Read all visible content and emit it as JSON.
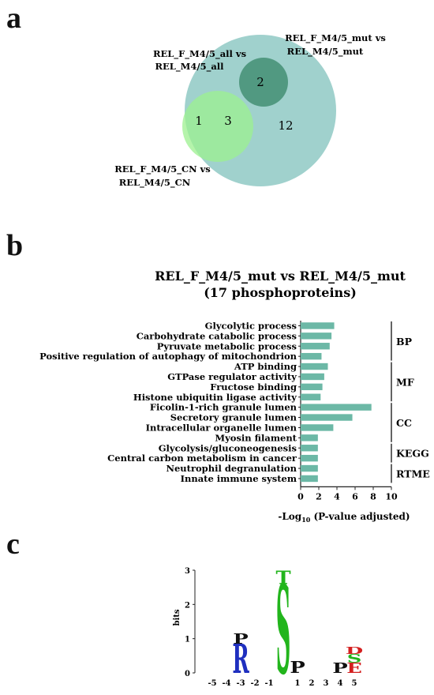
{
  "panels": {
    "a": "a",
    "b": "b",
    "c": "c"
  },
  "venn": {
    "sets": [
      {
        "name_line1": "REL_F_M4/5_all vs",
        "name_line2": "REL_M4/5_all",
        "color": "#3d8b6e"
      },
      {
        "name_line1": "REL_F_M4/5_mut vs",
        "name_line2": "REL_M4/5_mut",
        "color": "#8fc9c4"
      },
      {
        "name_line1": "REL_F_M4/5_CN vs",
        "name_line2": "REL_M4/5_CN",
        "color": "#9cf08f"
      }
    ],
    "counts": {
      "only_CN": "1",
      "CN_and_mut": "3",
      "all_and_mut": "2",
      "only_mut": "12"
    }
  },
  "chart_data": {
    "type": "bar",
    "orientation": "horizontal",
    "title_line1": "REL_F_M4/5_mut vs REL_M4/5_mut",
    "title_line2": "(17 phosphoproteins)",
    "xlabel": "-Log10 (P-value adjusted)",
    "xlim": [
      0,
      10
    ],
    "xticks": [
      0,
      2,
      4,
      6,
      8,
      10
    ],
    "bar_color": "#6cb8a6",
    "categories": [
      "Glycolytic process",
      "Carbohydrate catabolic process",
      "Pyruvate metabolic process",
      "Positive regulation of autophagy of mitochondrion",
      "ATP binding",
      "GTPase regulator activity",
      "Fructose binding",
      "Histone ubiquitin ligase activity",
      "Ficolin-1-rich granule lumen",
      "Secretory granule lumen",
      "Intracellular organelle lumen",
      "Myosin filament",
      "Glycolysis/gluconeogenesis",
      "Central carbon metabolism in cancer",
      "Neutrophil degranulation",
      "Innate immune system"
    ],
    "values": [
      3.7,
      3.4,
      3.2,
      2.3,
      3.0,
      2.6,
      2.4,
      2.2,
      7.8,
      5.7,
      3.6,
      1.9,
      1.9,
      1.9,
      1.9,
      1.9
    ],
    "groups": [
      {
        "label": "BP",
        "start": 0,
        "end": 3
      },
      {
        "label": "MF",
        "start": 4,
        "end": 7
      },
      {
        "label": "CC",
        "start": 8,
        "end": 11
      },
      {
        "label": "KEGG",
        "start": 12,
        "end": 13
      },
      {
        "label": "RTME",
        "start": 14,
        "end": 15
      }
    ]
  },
  "logo": {
    "ylabel": "bits",
    "yticks": [
      "0",
      "1",
      "2",
      "3"
    ],
    "positions": [
      "-5",
      "-4",
      "-3",
      "-2",
      "-1",
      "",
      "1",
      "2",
      "3",
      "4",
      "5"
    ],
    "residues": [
      {
        "pos": 2,
        "letter": "R",
        "bits": 0.85,
        "color": "#1f2fbf"
      },
      {
        "pos": 2,
        "letter": "P",
        "bits": 0.3,
        "color": "#111111"
      },
      {
        "pos": 5,
        "letter": "S",
        "bits": 2.6,
        "color": "#22b51c"
      },
      {
        "pos": 5,
        "letter": "T",
        "bits": 0.4,
        "color": "#22b51c"
      },
      {
        "pos": 6,
        "letter": "P",
        "bits": 0.35,
        "color": "#111111"
      },
      {
        "pos": 9,
        "letter": "P",
        "bits": 0.3,
        "color": "#111111"
      },
      {
        "pos": 10,
        "letter": "E",
        "bits": 0.3,
        "color": "#d42020"
      },
      {
        "pos": 10,
        "letter": "S",
        "bits": 0.25,
        "color": "#22b51c"
      },
      {
        "pos": 10,
        "letter": "D",
        "bits": 0.2,
        "color": "#d42020"
      }
    ]
  }
}
